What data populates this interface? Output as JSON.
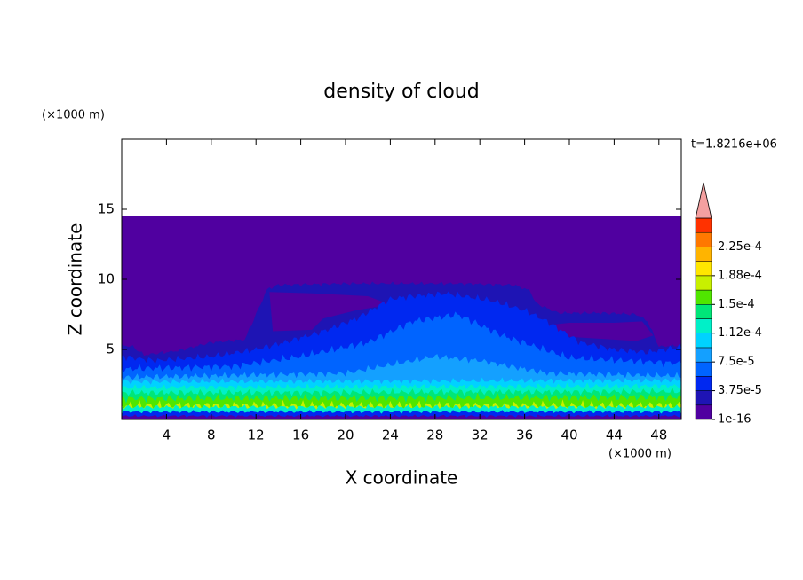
{
  "chart_data": {
    "type": "contour",
    "title": "density of cloud",
    "xlabel": "X coordinate",
    "ylabel": "Z coordinate",
    "x_unit_label": "(×1000 m)",
    "y_unit_label": "(×1000 m)",
    "annotation": "t=1.8216e+06",
    "xlim": [
      0,
      50
    ],
    "ylim": [
      0,
      20
    ],
    "xticks": [
      4,
      8,
      12,
      16,
      20,
      24,
      28,
      32,
      36,
      40,
      44,
      48
    ],
    "yticks": [
      5,
      10,
      15
    ],
    "colorbar": {
      "levels": [
        {
          "value": 1e-16,
          "label": "1e-16"
        },
        {
          "value": 3.75e-05,
          "label": "3.75e-5"
        },
        {
          "value": 7.5e-05,
          "label": "7.5e-5"
        },
        {
          "value": 0.000112,
          "label": "1.12e-4"
        },
        {
          "value": 0.00015,
          "label": "1.5e-4"
        },
        {
          "value": 0.000188,
          "label": "1.88e-4"
        },
        {
          "value": 0.000225,
          "label": "2.25e-4"
        }
      ],
      "colors": [
        "#5000a0",
        "#1e14b4",
        "#0028f0",
        "#0064ff",
        "#14a0ff",
        "#00d2ff",
        "#00f0c8",
        "#00e678",
        "#50e600",
        "#c8f000",
        "#ffe600",
        "#ffb400",
        "#ff7800",
        "#ff3200"
      ],
      "extend_color": "#f4a0a0"
    }
  }
}
